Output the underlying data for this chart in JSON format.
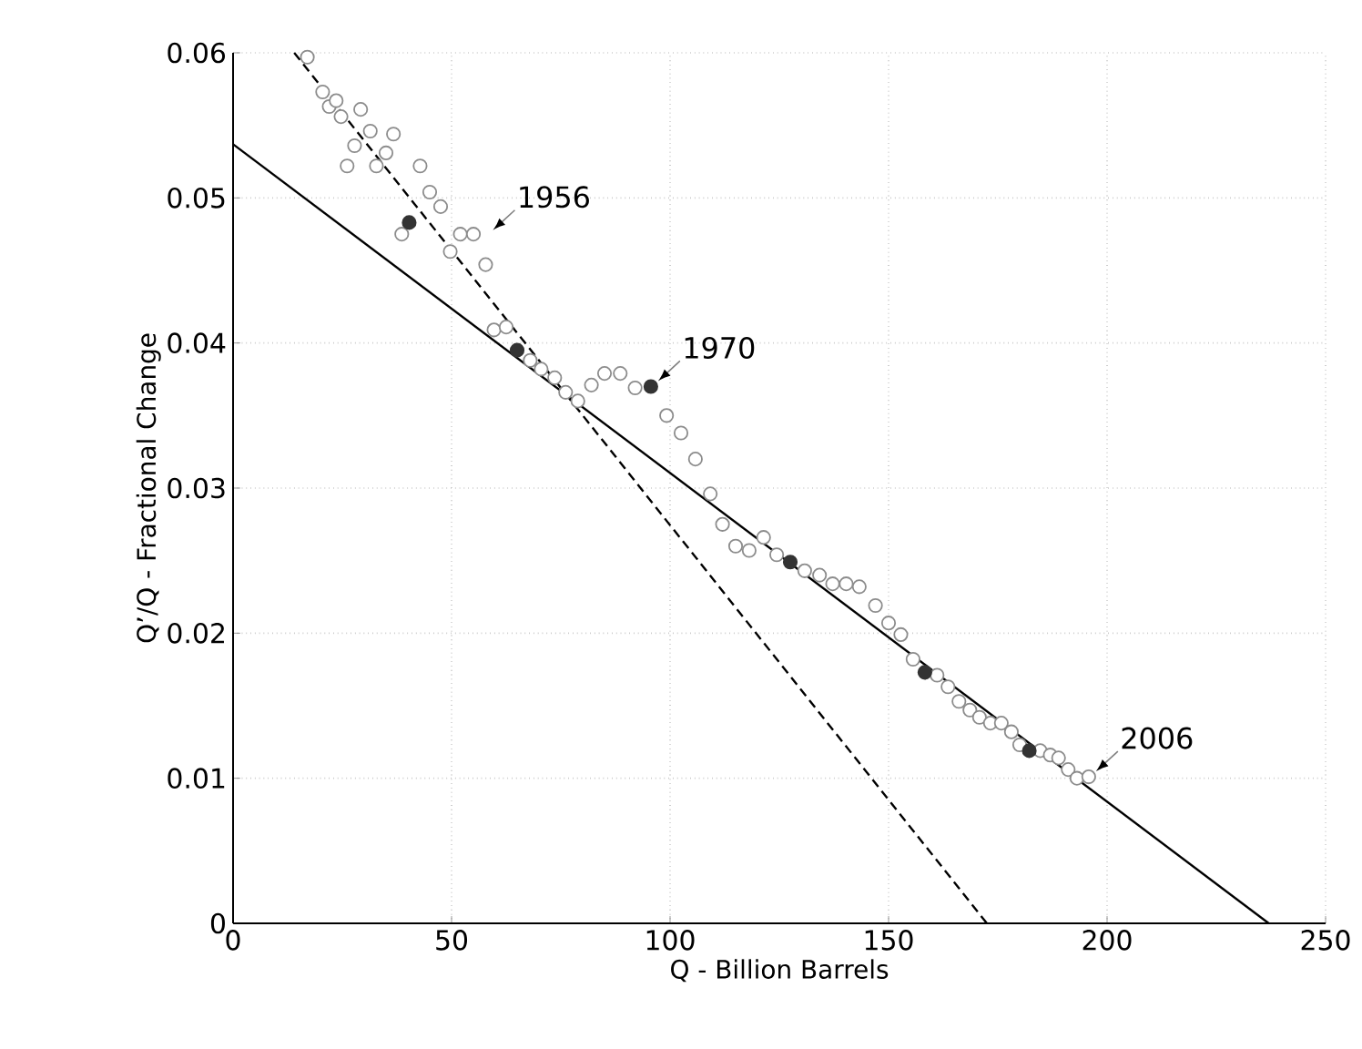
{
  "chart_data": {
    "type": "scatter",
    "xlabel": "Q - Billion Barrels",
    "ylabel": "Q’/Q - Fractional Change",
    "xlim": [
      0,
      250
    ],
    "ylim": [
      0,
      0.06
    ],
    "xticks": [
      0,
      50,
      100,
      150,
      200,
      250
    ],
    "yticks": [
      0,
      0.01,
      0.02,
      0.03,
      0.04,
      0.05,
      0.06
    ],
    "grid": true,
    "marker": "circle",
    "series": [
      {
        "type": "scatter",
        "color": "#8c8c8c",
        "x": [
          17,
          20.5,
          22.0,
          23.6,
          24.7,
          29.2,
          31.4,
          27.8,
          36.7,
          35.0,
          26.1,
          32.8,
          42.8,
          45.0,
          47.5,
          38.6,
          52.0,
          55.0,
          49.7,
          57.8,
          59.7,
          62.5,
          68.0,
          70.5,
          73.6,
          76.1,
          78.9,
          82.0,
          85.0,
          88.6,
          92.0,
          99.2,
          102.5,
          105.8,
          109.2,
          112.0,
          115.0,
          118.1,
          121.4,
          124.4,
          130.8,
          134.2,
          137.2,
          140.3,
          143.3,
          147.0,
          150.0,
          152.8,
          155.6,
          161.1,
          163.6,
          166.1,
          168.6,
          170.8,
          173.3,
          175.8,
          178.1,
          180.0,
          184.7,
          187.0,
          188.9,
          191.1,
          193.1,
          195.8
        ],
        "values": [
          0.0597,
          0.0573,
          0.0563,
          0.0567,
          0.0556,
          0.0561,
          0.0546,
          0.0536,
          0.0544,
          0.0531,
          0.0522,
          0.0522,
          0.0522,
          0.0504,
          0.0494,
          0.0475,
          0.0475,
          0.0475,
          0.0463,
          0.0454,
          0.0409,
          0.0411,
          0.0388,
          0.0382,
          0.0376,
          0.0366,
          0.036,
          0.0371,
          0.0379,
          0.0379,
          0.0369,
          0.035,
          0.0338,
          0.032,
          0.0296,
          0.0275,
          0.026,
          0.0257,
          0.0266,
          0.0254,
          0.0243,
          0.024,
          0.0234,
          0.0234,
          0.0232,
          0.0219,
          0.0207,
          0.0199,
          0.0182,
          0.0171,
          0.0163,
          0.0153,
          0.0147,
          0.0142,
          0.0138,
          0.0138,
          0.0132,
          0.0123,
          0.0119,
          0.0116,
          0.0114,
          0.0106,
          0.01,
          0.0101
        ]
      },
      {
        "type": "scatter",
        "color": "#333333",
        "x": [
          40.3,
          65.0,
          95.6,
          127.5,
          158.3,
          182.2
        ],
        "values": [
          0.0483,
          0.0395,
          0.037,
          0.0249,
          0.0173,
          0.0119
        ]
      },
      {
        "type": "line",
        "color": "#000000",
        "line_style": "dashed",
        "marker": "none",
        "x": [
          14,
          172.5
        ],
        "values": [
          0.06,
          0
        ]
      },
      {
        "type": "line",
        "color": "#000000",
        "line_style": "solid",
        "marker": "none",
        "x": [
          0,
          237
        ],
        "values": [
          0.0537,
          0
        ]
      }
    ],
    "annotations": [
      {
        "text": "1956",
        "x": 57.8,
        "y": 0.0474
      },
      {
        "text": "1970",
        "x": 95.6,
        "y": 0.037
      },
      {
        "text": "2006",
        "x": 195.8,
        "y": 0.0101
      }
    ]
  }
}
